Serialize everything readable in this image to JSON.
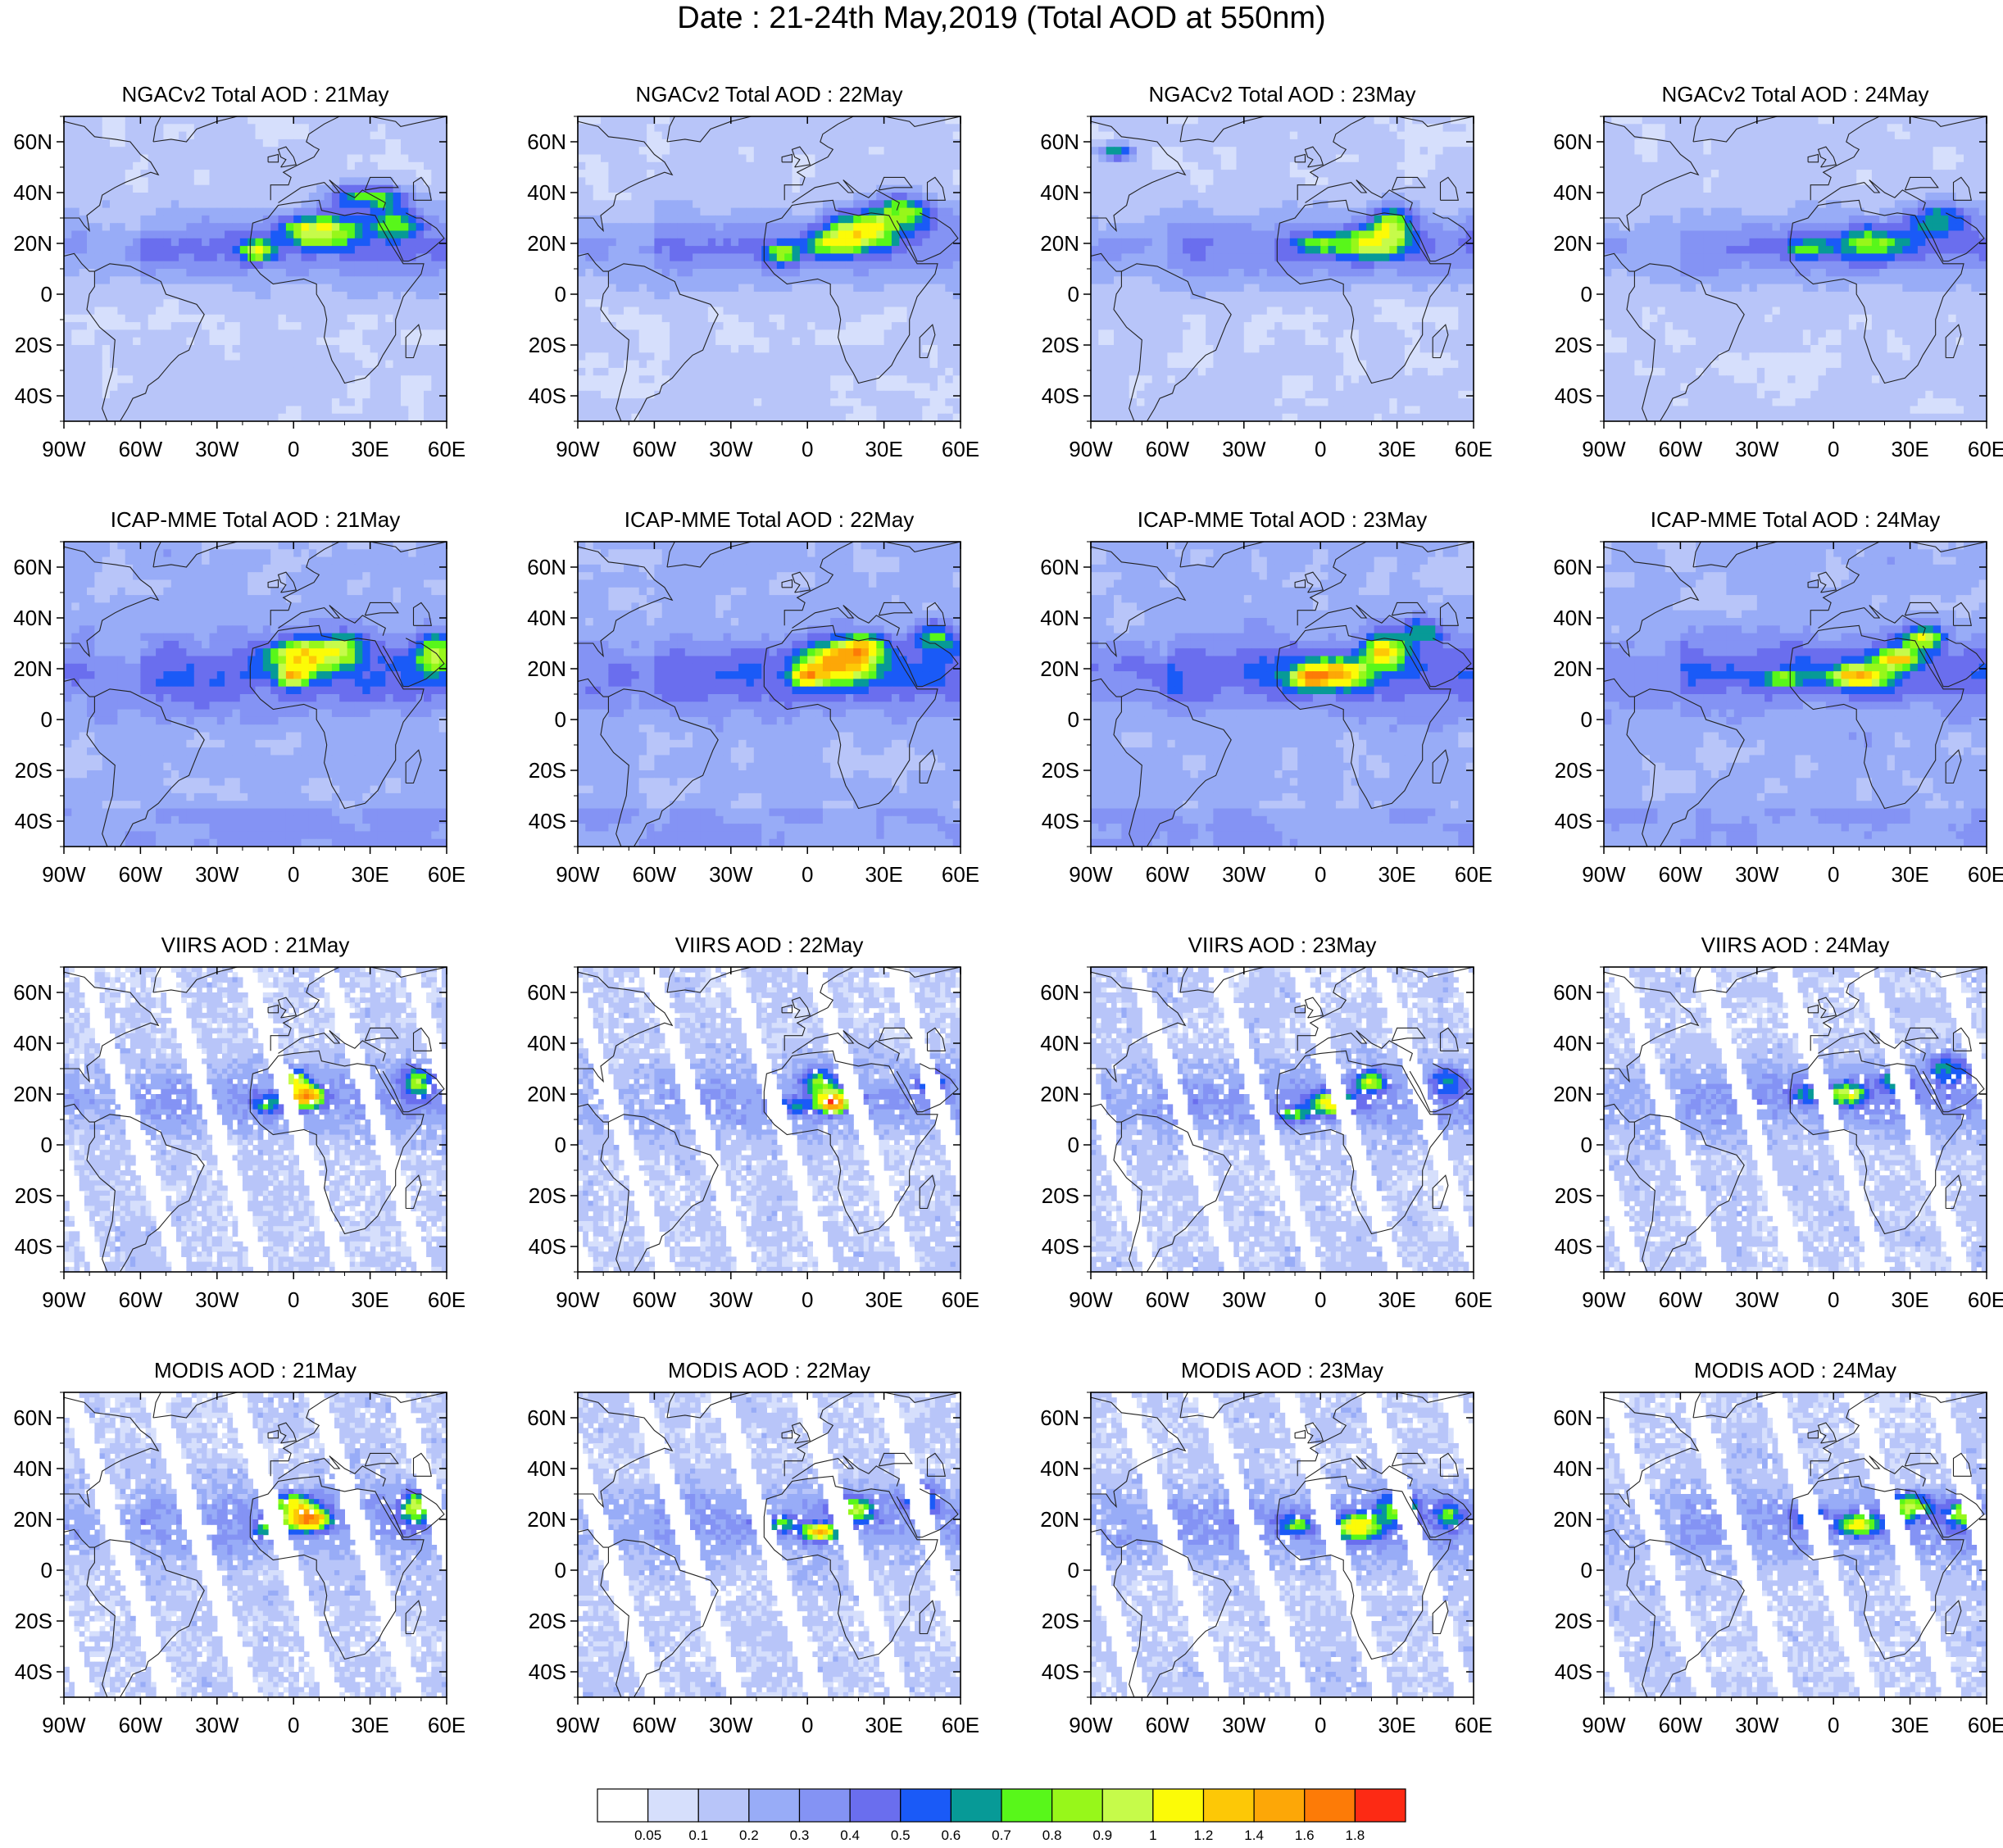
{
  "figure_title": "Date : 21-24th May,2019 (Total AOD at 550nm)",
  "panels": [
    {
      "row": 0,
      "col": 0,
      "title": "NGACv2 Total AOD : 21May",
      "model": "ngac",
      "day": 21
    },
    {
      "row": 0,
      "col": 1,
      "title": "NGACv2 Total AOD : 22May",
      "model": "ngac",
      "day": 22
    },
    {
      "row": 0,
      "col": 2,
      "title": "NGACv2 Total AOD : 23May",
      "model": "ngac",
      "day": 23
    },
    {
      "row": 0,
      "col": 3,
      "title": "NGACv2 Total AOD : 24May",
      "model": "ngac",
      "day": 24
    },
    {
      "row": 1,
      "col": 0,
      "title": "ICAP-MME Total AOD : 21May",
      "model": "icap",
      "day": 21
    },
    {
      "row": 1,
      "col": 1,
      "title": "ICAP-MME Total AOD : 22May",
      "model": "icap",
      "day": 22
    },
    {
      "row": 1,
      "col": 2,
      "title": "ICAP-MME Total AOD : 23May",
      "model": "icap",
      "day": 23
    },
    {
      "row": 1,
      "col": 3,
      "title": "ICAP-MME Total AOD : 24May",
      "model": "icap",
      "day": 24
    },
    {
      "row": 2,
      "col": 0,
      "title": "VIIRS AOD : 21May",
      "model": "viirs",
      "day": 21
    },
    {
      "row": 2,
      "col": 1,
      "title": "VIIRS AOD : 22May",
      "model": "viirs",
      "day": 22
    },
    {
      "row": 2,
      "col": 2,
      "title": "VIIRS AOD : 23May",
      "model": "viirs",
      "day": 23
    },
    {
      "row": 2,
      "col": 3,
      "title": "VIIRS AOD : 24May",
      "model": "viirs",
      "day": 24
    },
    {
      "row": 3,
      "col": 0,
      "title": "MODIS AOD : 21May",
      "model": "modis",
      "day": 21
    },
    {
      "row": 3,
      "col": 1,
      "title": "MODIS AOD : 22May",
      "model": "modis",
      "day": 22
    },
    {
      "row": 3,
      "col": 2,
      "title": "MODIS AOD : 23May",
      "model": "modis",
      "day": 23
    },
    {
      "row": 3,
      "col": 3,
      "title": "MODIS AOD : 24May",
      "model": "modis",
      "day": 24
    }
  ],
  "map_extent": {
    "lon_min": -90,
    "lon_max": 60,
    "lat_min": -50,
    "lat_max": 70
  },
  "lon_ticks": [
    {
      "value": -90,
      "label": "90W"
    },
    {
      "value": -60,
      "label": "60W"
    },
    {
      "value": -30,
      "label": "30W"
    },
    {
      "value": 0,
      "label": "0"
    },
    {
      "value": 30,
      "label": "30E"
    },
    {
      "value": 60,
      "label": "60E"
    }
  ],
  "lat_ticks": [
    {
      "value": 60,
      "label": "60N"
    },
    {
      "value": 40,
      "label": "40N"
    },
    {
      "value": 20,
      "label": "20N"
    },
    {
      "value": 0,
      "label": "0"
    },
    {
      "value": -20,
      "label": "20S"
    },
    {
      "value": -40,
      "label": "40S"
    }
  ],
  "colorbar": {
    "colors": [
      "#ffffff",
      "#d6dffc",
      "#b8c5f9",
      "#98acf7",
      "#8493f4",
      "#6a6eee",
      "#1a5af7",
      "#079a97",
      "#58f71a",
      "#97f71a",
      "#c6fb4a",
      "#fcfb07",
      "#fdc806",
      "#fda707",
      "#fd7b07",
      "#fd2a14"
    ],
    "labels": [
      "0.05",
      "0.1",
      "0.2",
      "0.3",
      "0.4",
      "0.5",
      "0.6",
      "0.7",
      "0.8",
      "0.9",
      "1",
      "1.2",
      "1.4",
      "1.6",
      "1.8"
    ]
  }
}
